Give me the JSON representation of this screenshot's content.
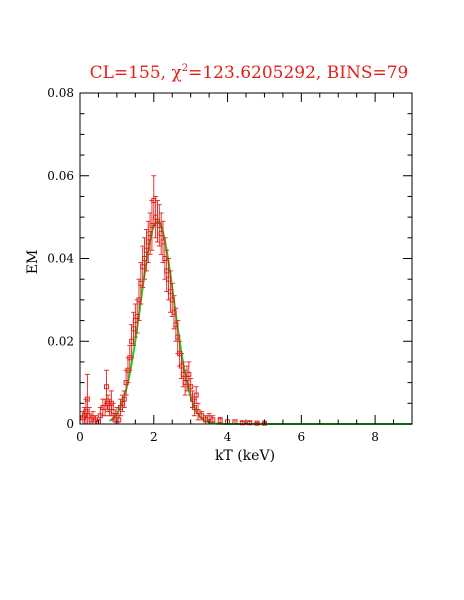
{
  "chart_data": {
    "type": "scatter",
    "title": "CL=155, χ²=123.6205292, BINS=79",
    "title_parts": {
      "prefix": "CL=155,  ",
      "chi": "χ",
      "sup": "2",
      "suffix": "=123.6205292,  BINS=79"
    },
    "xlabel": "kT (keV)",
    "ylabel": "EM",
    "xlim": [
      0,
      9
    ],
    "ylim": [
      0,
      0.08
    ],
    "xticks": [
      0,
      2,
      4,
      6,
      8
    ],
    "xtick_labels": [
      "0",
      "2",
      "4",
      "6",
      "8"
    ],
    "yticks": [
      0,
      0.02,
      0.04,
      0.06,
      0.08
    ],
    "ytick_labels": [
      "0",
      "0.02",
      "0.04",
      "0.06",
      "0.08"
    ],
    "grid": false,
    "colors": {
      "data": "#e0201a",
      "fit": "#22cc22",
      "title": "#e0201a"
    },
    "series": [
      {
        "kind": "points_with_errorbars",
        "points": [
          [
            0.08,
            0.0015,
            0.0015
          ],
          [
            0.12,
            0.002,
            0.002
          ],
          [
            0.16,
            0.003,
            0.003
          ],
          [
            0.2,
            0.006,
            0.006
          ],
          [
            0.25,
            0.002,
            0.002
          ],
          [
            0.3,
            0.001,
            0.001
          ],
          [
            0.35,
            0.0015,
            0.0015
          ],
          [
            0.42,
            0.001,
            0.001
          ],
          [
            0.5,
            0.0005,
            0.0005
          ],
          [
            0.55,
            0.002,
            0.002
          ],
          [
            0.62,
            0.004,
            0.002
          ],
          [
            0.68,
            0.004,
            0.002
          ],
          [
            0.72,
            0.009,
            0.004
          ],
          [
            0.76,
            0.005,
            0.002
          ],
          [
            0.8,
            0.004,
            0.002
          ],
          [
            0.85,
            0.005,
            0.003
          ],
          [
            0.9,
            0.003,
            0.002
          ],
          [
            0.95,
            0.001,
            0.001
          ],
          [
            1.0,
            0.002,
            0.002
          ],
          [
            1.05,
            0.001,
            0.001
          ],
          [
            1.1,
            0.004,
            0.002
          ],
          [
            1.15,
            0.005,
            0.002
          ],
          [
            1.2,
            0.006,
            0.002
          ],
          [
            1.25,
            0.01,
            0.003
          ],
          [
            1.3,
            0.013,
            0.003
          ],
          [
            1.35,
            0.016,
            0.003
          ],
          [
            1.4,
            0.02,
            0.004
          ],
          [
            1.45,
            0.023,
            0.004
          ],
          [
            1.5,
            0.025,
            0.004
          ],
          [
            1.55,
            0.026,
            0.004
          ],
          [
            1.6,
            0.03,
            0.005
          ],
          [
            1.65,
            0.034,
            0.005
          ],
          [
            1.7,
            0.038,
            0.005
          ],
          [
            1.75,
            0.04,
            0.005
          ],
          [
            1.8,
            0.042,
            0.005
          ],
          [
            1.85,
            0.044,
            0.005
          ],
          [
            1.9,
            0.046,
            0.005
          ],
          [
            1.95,
            0.048,
            0.006
          ],
          [
            2.0,
            0.054,
            0.006
          ],
          [
            2.05,
            0.05,
            0.005
          ],
          [
            2.1,
            0.049,
            0.005
          ],
          [
            2.15,
            0.048,
            0.005
          ],
          [
            2.2,
            0.046,
            0.005
          ],
          [
            2.25,
            0.044,
            0.005
          ],
          [
            2.3,
            0.04,
            0.005
          ],
          [
            2.35,
            0.037,
            0.005
          ],
          [
            2.4,
            0.035,
            0.005
          ],
          [
            2.45,
            0.032,
            0.005
          ],
          [
            2.5,
            0.03,
            0.004
          ],
          [
            2.55,
            0.027,
            0.004
          ],
          [
            2.6,
            0.024,
            0.004
          ],
          [
            2.65,
            0.021,
            0.004
          ],
          [
            2.7,
            0.017,
            0.003
          ],
          [
            2.75,
            0.014,
            0.003
          ],
          [
            2.8,
            0.012,
            0.003
          ],
          [
            2.85,
            0.01,
            0.003
          ],
          [
            2.9,
            0.011,
            0.003
          ],
          [
            2.95,
            0.012,
            0.003
          ],
          [
            3.0,
            0.009,
            0.002
          ],
          [
            3.05,
            0.006,
            0.002
          ],
          [
            3.1,
            0.004,
            0.002
          ],
          [
            3.15,
            0.007,
            0.002
          ],
          [
            3.2,
            0.003,
            0.002
          ],
          [
            3.3,
            0.002,
            0.001
          ],
          [
            3.4,
            0.001,
            0.001
          ],
          [
            3.5,
            0.0015,
            0.001
          ],
          [
            3.6,
            0.001,
            0.001
          ],
          [
            3.8,
            0.0008,
            0.0008
          ],
          [
            4.0,
            0.0005,
            0.0005
          ],
          [
            4.2,
            0.0005,
            0.0005
          ],
          [
            4.4,
            0.0003,
            0.0003
          ],
          [
            4.6,
            0.0003,
            0.0003
          ],
          [
            4.8,
            0.0002,
            0.0002
          ],
          [
            5.0,
            0.0002,
            0.0002
          ]
        ]
      },
      {
        "kind": "fit_curve",
        "model": "gaussian",
        "amplitude": 0.049,
        "center": 2.1,
        "sigma": 0.45,
        "x_range": [
          0.8,
          9
        ]
      }
    ]
  }
}
